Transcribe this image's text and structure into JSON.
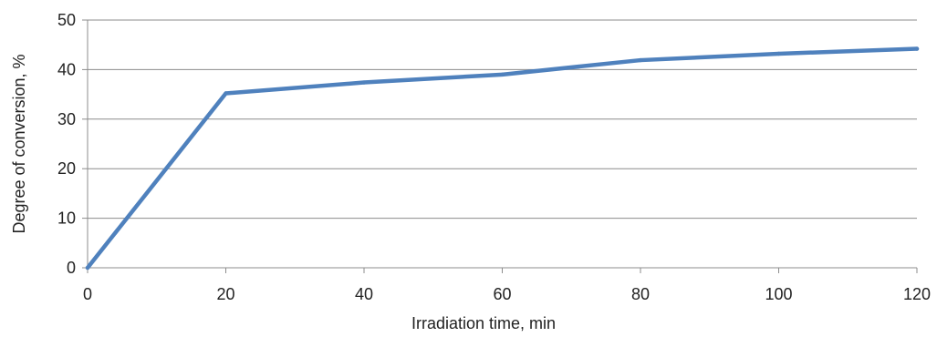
{
  "chart_data": {
    "type": "line",
    "title": "",
    "xlabel": "Irradiation time, min",
    "ylabel": "Degree of conversion,  %",
    "x": [
      0,
      20,
      40,
      60,
      80,
      100,
      120
    ],
    "series": [
      {
        "name": "",
        "values": [
          0,
          35.2,
          37.4,
          39.0,
          41.9,
          43.2,
          44.2
        ],
        "color": "#4F81BD"
      }
    ],
    "xlim": [
      0,
      120
    ],
    "ylim": [
      0,
      50
    ],
    "xticks": [
      "0",
      "20",
      "40",
      "60",
      "80",
      "100",
      "120"
    ],
    "yticks": [
      "0",
      "10",
      "20",
      "30",
      "40",
      "50"
    ],
    "grid": "horizontal",
    "legend": "none"
  }
}
